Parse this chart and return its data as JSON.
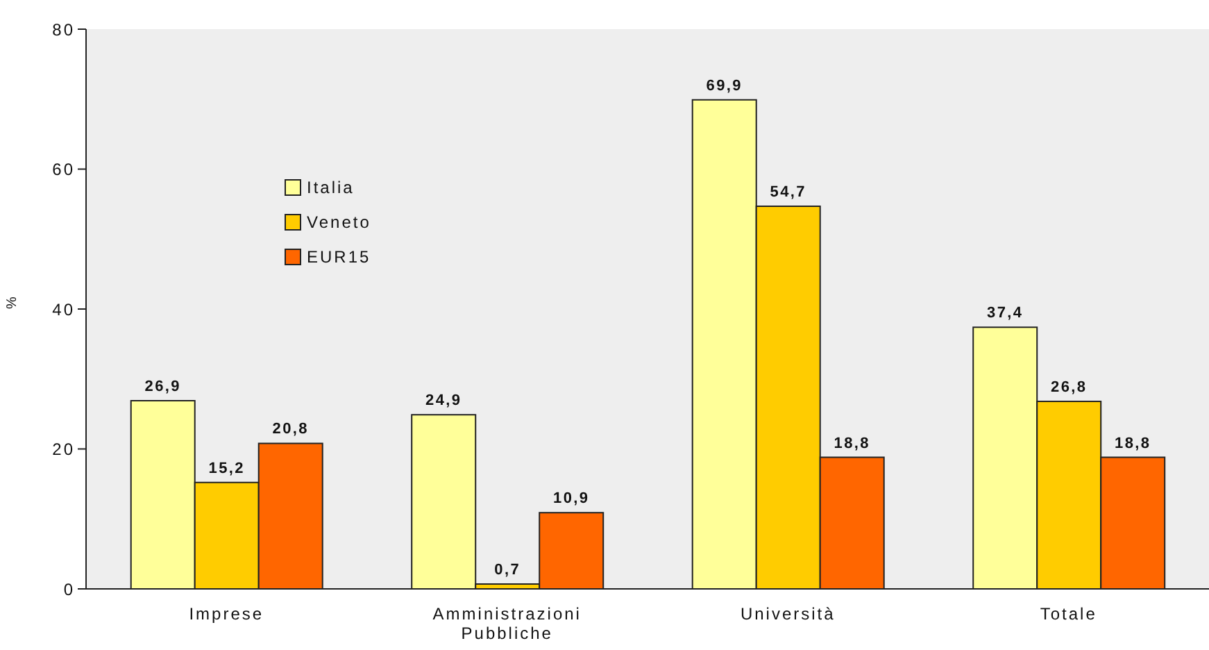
{
  "chart_data": {
    "type": "bar",
    "ylabel": "%",
    "categories": [
      "Imprese",
      "Amministrazioni Pubbliche",
      "Università",
      "Totale"
    ],
    "series": [
      {
        "name": "Italia",
        "color": "#ffff99",
        "values": [
          26.9,
          24.9,
          69.9,
          37.4
        ],
        "value_labels": [
          "26,9",
          "24,9",
          "69,9",
          "37,4"
        ]
      },
      {
        "name": "Veneto",
        "color": "#ffcc00",
        "values": [
          15.2,
          0.7,
          54.7,
          26.8
        ],
        "value_labels": [
          "15,2",
          "0,7",
          "54,7",
          "26,8"
        ]
      },
      {
        "name": "EUR15",
        "color": "#ff6600",
        "values": [
          20.8,
          10.9,
          18.8,
          18.8
        ],
        "value_labels": [
          "20,8",
          "10,9",
          "18,8",
          "18,8"
        ]
      }
    ],
    "ylim": [
      0,
      80
    ],
    "yticks": [
      0,
      20,
      40,
      60,
      80
    ],
    "grid": false,
    "legend": "top left"
  }
}
